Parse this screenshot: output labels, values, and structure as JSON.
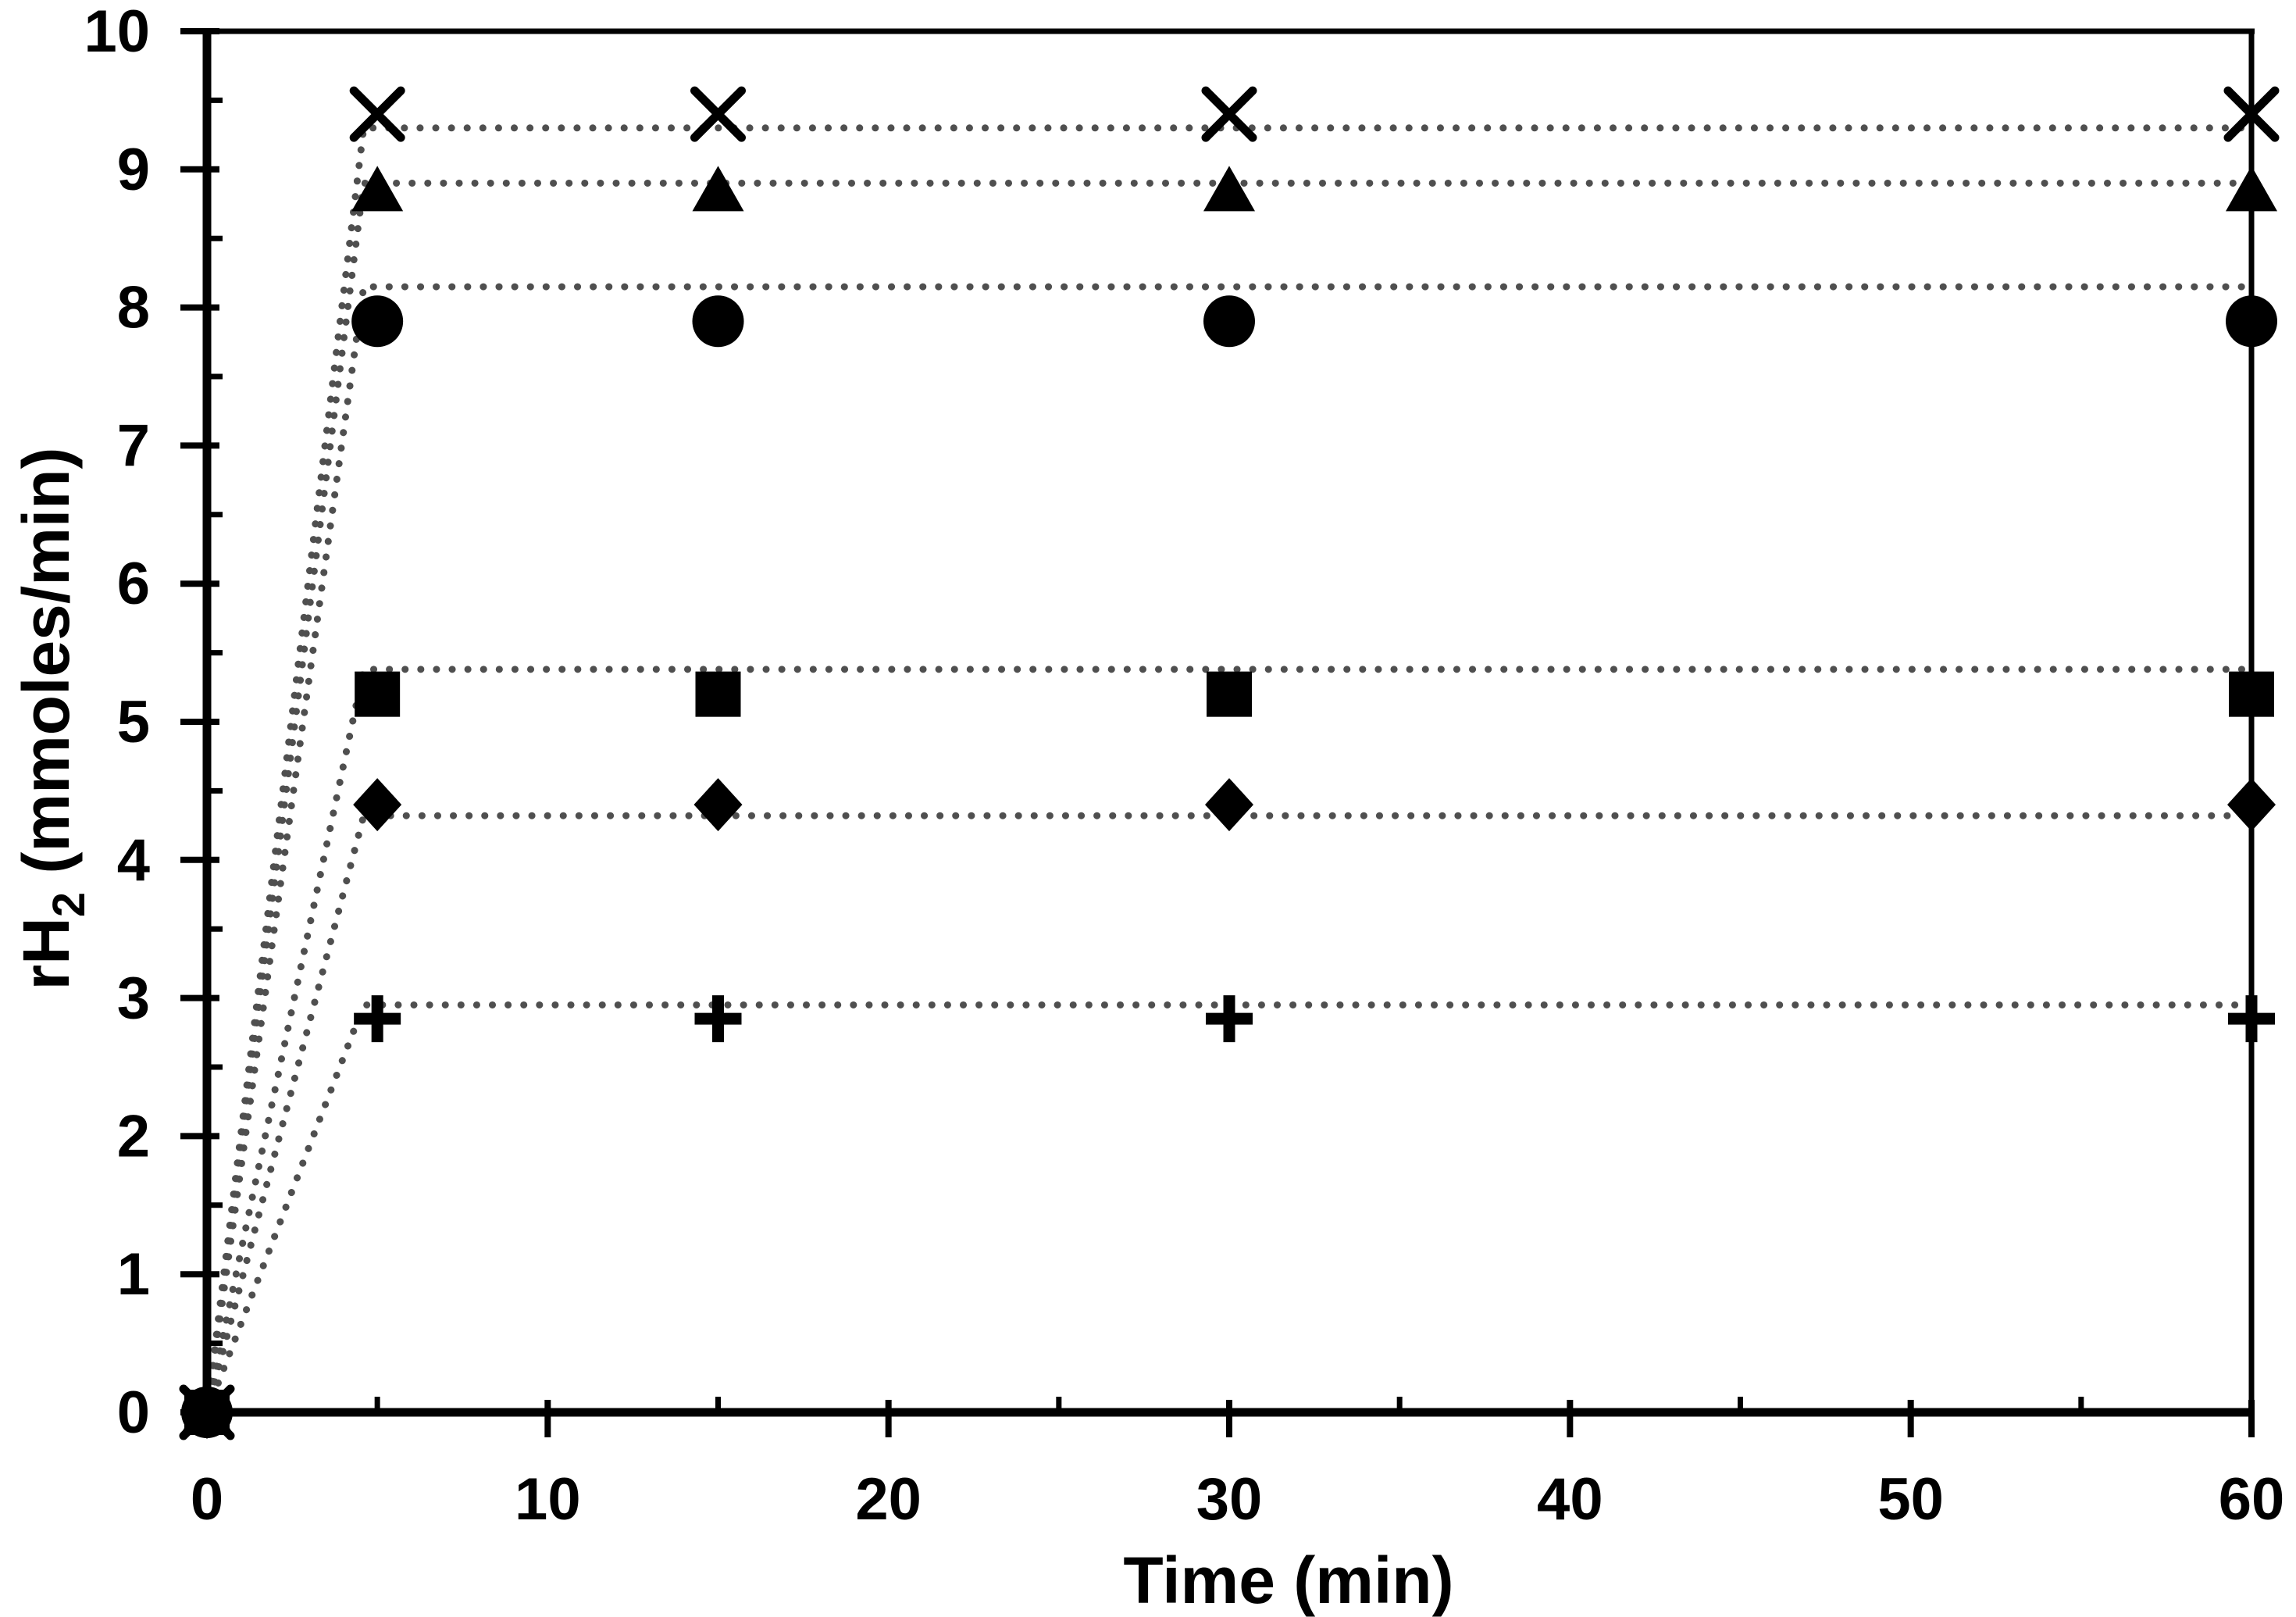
{
  "chart_data": {
    "type": "scatter",
    "title": "",
    "xlabel": "Time (min)",
    "ylabel": "rH2 (mmoles/min)",
    "ylabel_parts": {
      "prefix": "rH",
      "subscript": "2",
      "suffix": " (mmoles/min)"
    },
    "xlim": [
      0,
      60
    ],
    "ylim": [
      0,
      10
    ],
    "x_major_ticks": [
      0,
      10,
      20,
      30,
      40,
      50,
      60
    ],
    "x_minor_step": 5,
    "y_major_ticks": [
      0,
      1,
      2,
      3,
      4,
      5,
      6,
      7,
      8,
      9,
      10
    ],
    "y_minor_step": 0.5,
    "grid": false,
    "legend_position": "none",
    "x": [
      0,
      5,
      15,
      30,
      60
    ],
    "series": [
      {
        "name": "cross-series",
        "marker": "cross",
        "values": [
          0,
          9.4,
          9.4,
          9.4,
          9.4
        ],
        "fit_plateau": 9.3
      },
      {
        "name": "triangle-series",
        "marker": "triangle",
        "values": [
          0,
          8.85,
          8.85,
          8.85,
          8.85
        ],
        "fit_plateau": 8.9
      },
      {
        "name": "circle-series",
        "marker": "circle",
        "values": [
          0,
          7.9,
          7.9,
          7.9,
          7.9
        ],
        "fit_plateau": 8.15
      },
      {
        "name": "square-series",
        "marker": "square",
        "values": [
          0,
          5.2,
          5.2,
          5.2,
          5.2
        ],
        "fit_plateau": 5.38
      },
      {
        "name": "diamond-series",
        "marker": "diamond",
        "values": [
          0,
          4.4,
          4.4,
          4.4,
          4.4
        ],
        "fit_plateau": 4.32
      },
      {
        "name": "plus-series",
        "marker": "plus",
        "values": [
          0,
          2.85,
          2.85,
          2.85,
          2.85
        ],
        "fit_plateau": 2.95
      }
    ],
    "fit_line_style": "dotted",
    "fit_rise_end_x": 4.6,
    "colors": {
      "marker": "#000000",
      "dotted_line": "#4f4f4f",
      "axis": "#000000",
      "background": "#ffffff"
    }
  }
}
